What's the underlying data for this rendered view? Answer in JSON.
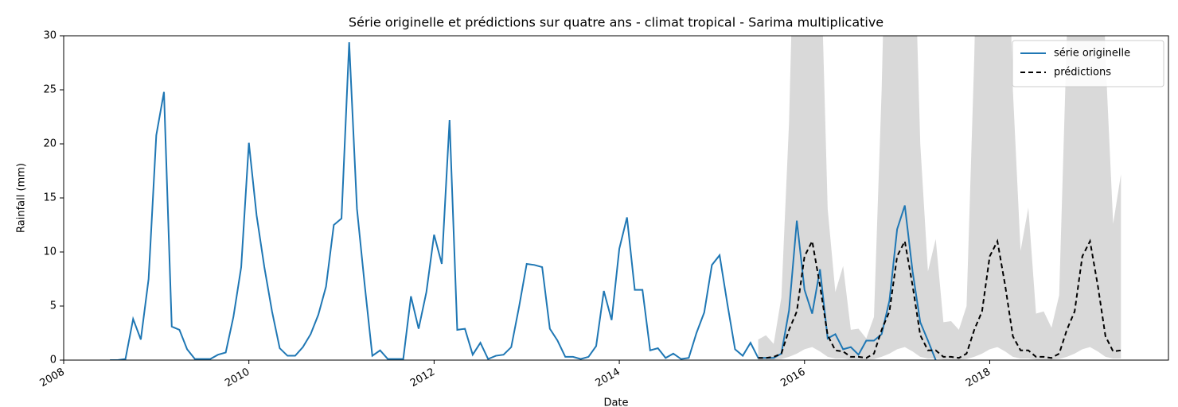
{
  "chart_data": {
    "type": "line",
    "title": "Série originelle et prédictions sur quatre ans - climat tropical - Sarima multiplicative",
    "xlabel": "Date",
    "ylabel": "Rainfall (mm)",
    "xlim": [
      2008,
      2019.93
    ],
    "xticks": [
      2008,
      2010,
      2012,
      2014,
      2016,
      2018
    ],
    "ylim": [
      0,
      30
    ],
    "yticks": [
      0,
      5,
      10,
      15,
      20,
      25,
      30
    ],
    "grid": false,
    "legend": "upper right",
    "series": [
      {
        "name": "série originelle",
        "color": "#1f77b4",
        "dash": false,
        "x": [
          2008.5,
          2008.583,
          2008.667,
          2008.75,
          2008.833,
          2008.917,
          2009,
          2009.083,
          2009.167,
          2009.25,
          2009.333,
          2009.417,
          2009.5,
          2009.583,
          2009.667,
          2009.75,
          2009.833,
          2009.917,
          2010,
          2010.083,
          2010.167,
          2010.25,
          2010.333,
          2010.417,
          2010.5,
          2010.583,
          2010.667,
          2010.75,
          2010.833,
          2010.917,
          2011,
          2011.083,
          2011.167,
          2011.25,
          2011.333,
          2011.417,
          2011.5,
          2011.583,
          2011.667,
          2011.75,
          2011.833,
          2011.917,
          2012,
          2012.083,
          2012.167,
          2012.25,
          2012.333,
          2012.417,
          2012.5,
          2012.583,
          2012.667,
          2012.75,
          2012.833,
          2012.917,
          2013,
          2013.083,
          2013.167,
          2013.25,
          2013.333,
          2013.417,
          2013.5,
          2013.583,
          2013.667,
          2013.75,
          2013.833,
          2013.917,
          2014,
          2014.083,
          2014.167,
          2014.25,
          2014.333,
          2014.417,
          2014.5,
          2014.583,
          2014.667,
          2014.75,
          2014.833,
          2014.917,
          2015,
          2015.083,
          2015.167,
          2015.25,
          2015.333,
          2015.417,
          2015.5,
          2015.583,
          2015.667,
          2015.75,
          2015.833,
          2015.917,
          2016,
          2016.083,
          2016.167,
          2016.25,
          2016.333,
          2016.417,
          2016.5,
          2016.583,
          2016.667,
          2016.75,
          2016.833,
          2016.917,
          2017,
          2017.083,
          2017.167,
          2017.25,
          2017.333,
          2017.417
        ],
        "values": [
          0,
          0,
          0.1,
          3.8,
          1.9,
          7.5,
          20.8,
          24.8,
          3.1,
          2.8,
          1.0,
          0.1,
          0.1,
          0.1,
          0.5,
          0.7,
          4.0,
          8.6,
          20.1,
          13.4,
          8.6,
          4.5,
          1.1,
          0.4,
          0.4,
          1.2,
          2.4,
          4.2,
          6.8,
          12.5,
          13.1,
          29.4,
          14.0,
          7.0,
          0.4,
          0.9,
          0.1,
          0.1,
          0.1,
          5.9,
          2.9,
          6.3,
          11.6,
          8.9,
          22.2,
          2.8,
          2.9,
          0.5,
          1.6,
          0.1,
          0.4,
          0.5,
          1.2,
          4.9,
          8.9,
          8.8,
          8.6,
          2.9,
          1.8,
          0.3,
          0.3,
          0.1,
          0.3,
          1.3,
          6.4,
          3.7,
          10.3,
          13.2,
          6.5,
          6.5,
          0.9,
          1.1,
          0.2,
          0.6,
          0.1,
          0.2,
          2.5,
          4.4,
          8.8,
          9.7,
          5.2,
          1.0,
          0.4,
          1.6,
          0.2,
          0.2,
          0.2,
          0.6,
          4.6,
          12.9,
          6.5,
          4.3,
          8.4,
          2.0,
          2.4,
          1.0,
          1.2,
          0.5,
          1.8,
          1.8,
          2.4,
          5.5,
          12.1,
          14.3,
          8.2,
          3.5,
          1.8,
          0.0
        ]
      },
      {
        "name": "prédictions",
        "color": "#000000",
        "dash": true,
        "x": [
          2015.5,
          2015.583,
          2015.667,
          2015.75,
          2015.833,
          2015.917,
          2016,
          2016.083,
          2016.167,
          2016.25,
          2016.333,
          2016.417,
          2016.5,
          2016.583,
          2016.667,
          2016.75,
          2016.833,
          2016.917,
          2017,
          2017.083,
          2017.167,
          2017.25,
          2017.333,
          2017.417,
          2017.5,
          2017.583,
          2017.667,
          2017.75,
          2017.833,
          2017.917,
          2018,
          2018.083,
          2018.167,
          2018.25,
          2018.333,
          2018.417,
          2018.5,
          2018.583,
          2018.667,
          2018.75,
          2018.833,
          2018.917,
          2019,
          2019.083,
          2019.167,
          2019.25,
          2019.333,
          2019.417
        ],
        "values": [
          0.2,
          0.2,
          0.3,
          0.6,
          2.8,
          4.5,
          9.6,
          11.0,
          6.9,
          2.3,
          0.9,
          0.8,
          0.3,
          0.3,
          0.2,
          0.6,
          2.8,
          4.5,
          9.6,
          11.0,
          6.9,
          2.3,
          0.9,
          0.9,
          0.3,
          0.3,
          0.2,
          0.6,
          2.8,
          4.5,
          9.6,
          11.0,
          6.9,
          2.2,
          0.9,
          0.9,
          0.3,
          0.3,
          0.2,
          0.6,
          2.8,
          4.5,
          9.6,
          11.0,
          6.9,
          2.2,
          0.8,
          0.9
        ]
      }
    ],
    "band": {
      "color": "#d9d9d9",
      "upper": [
        1.9,
        2.3,
        1.5,
        5.8,
        22,
        50,
        80,
        70,
        40,
        14,
        6.3,
        8.7,
        2.8,
        2.9,
        2.0,
        4.0,
        25,
        55,
        85,
        75,
        45,
        20,
        8.2,
        11.2,
        3.5,
        3.6,
        2.8,
        5.0,
        28,
        60,
        90,
        80,
        50,
        25,
        10.1,
        14.1,
        4.3,
        4.5,
        3.0,
        6.0,
        30,
        65,
        95,
        85,
        55,
        28,
        12.6,
        17.2
      ],
      "lower": [
        0.05,
        0.05,
        0.05,
        0.1,
        0.3,
        0.6,
        1.0,
        1.2,
        0.8,
        0.3,
        0.15,
        0.15,
        0.05,
        0.05,
        0.05,
        0.1,
        0.3,
        0.6,
        1.0,
        1.2,
        0.8,
        0.3,
        0.15,
        0.15,
        0.05,
        0.05,
        0.05,
        0.1,
        0.3,
        0.6,
        1.0,
        1.2,
        0.8,
        0.3,
        0.15,
        0.15,
        0.05,
        0.05,
        0.05,
        0.1,
        0.3,
        0.6,
        1.0,
        1.2,
        0.8,
        0.3,
        0.15,
        0.15
      ]
    }
  }
}
